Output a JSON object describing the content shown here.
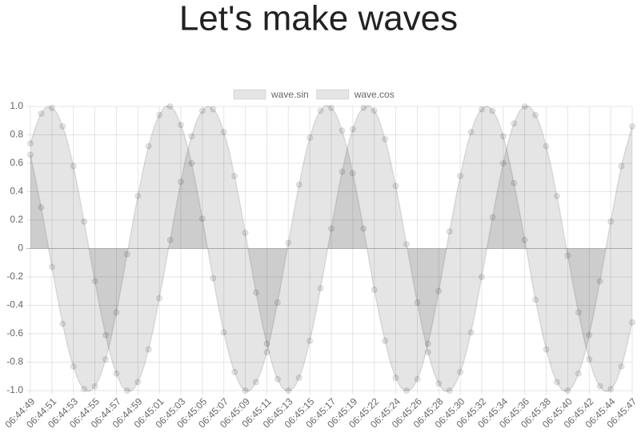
{
  "title": "Let's make waves",
  "chart_data": {
    "type": "line",
    "fill": "origin",
    "grid": true,
    "legend": "top",
    "categories": [
      "06:44:49",
      null,
      "06:44:51",
      null,
      "06:44:53",
      null,
      "06:44:55",
      null,
      "06:44:57",
      null,
      "06:44:59",
      null,
      "06:45:01",
      null,
      "06:45:03",
      null,
      "06:45:05",
      null,
      "06:45:07",
      null,
      "06:45:09",
      null,
      "06:45:11",
      null,
      "06:45:13",
      null,
      "06:45:15",
      null,
      "06:45:17",
      null,
      "06:45:19",
      null,
      "06:45:22",
      null,
      "06:45:24",
      null,
      "06:45:26",
      null,
      "06:45:28",
      null,
      "06:45:30",
      null,
      "06:45:32",
      null,
      "06:45:34",
      null,
      "06:45:36",
      null,
      "06:45:38",
      null,
      "06:45:40",
      null,
      "06:45:42",
      null,
      "06:45:44",
      null,
      "06:45:47"
    ],
    "series": [
      {
        "name": "wave.sin",
        "color": "rgba(0,0,0,0.1)",
        "values": [
          0.74,
          0.95,
          0.99,
          0.86,
          0.58,
          0.19,
          -0.23,
          -0.61,
          -0.88,
          -1.0,
          -0.94,
          -0.71,
          -0.35,
          0.06,
          0.47,
          0.79,
          0.97,
          0.98,
          0.82,
          0.51,
          0.11,
          -0.31,
          -0.67,
          -0.92,
          -1.0,
          -0.91,
          -0.65,
          -0.28,
          0.14,
          0.54,
          0.84,
          0.99,
          0.97,
          0.77,
          0.44,
          0.03,
          -0.38,
          -0.73,
          -0.95,
          -1.0,
          -0.87,
          -0.59,
          -0.2,
          0.22,
          0.6,
          0.88,
          1.0,
          0.94,
          0.72,
          0.37,
          -0.05,
          -0.45,
          -0.78,
          -0.97,
          -0.99,
          -0.83,
          -0.52
        ]
      },
      {
        "name": "wave.cos",
        "color": "rgba(0,0,0,0.1)",
        "values": [
          0.66,
          0.29,
          -0.13,
          -0.53,
          -0.83,
          -0.99,
          -0.97,
          -0.78,
          -0.45,
          -0.04,
          0.37,
          0.72,
          0.94,
          1.0,
          0.87,
          0.6,
          0.21,
          -0.21,
          -0.59,
          -0.87,
          -1.0,
          -0.94,
          -0.73,
          -0.38,
          0.04,
          0.45,
          0.78,
          0.97,
          0.99,
          0.83,
          0.53,
          0.14,
          -0.29,
          -0.65,
          -0.91,
          -1.0,
          -0.92,
          -0.67,
          -0.3,
          0.12,
          0.51,
          0.82,
          0.98,
          0.97,
          0.79,
          0.46,
          0.06,
          -0.36,
          -0.71,
          -0.94,
          -1.0,
          -0.88,
          -0.61,
          -0.23,
          0.19,
          0.58,
          0.86
        ]
      }
    ],
    "ylim": [
      -1,
      1
    ],
    "yticks": [
      {
        "value": 1,
        "label": "1.0"
      },
      0.8,
      0.6,
      0.4,
      0.2,
      0,
      -0.2,
      -0.4,
      -0.6,
      -0.8,
      {
        "value": -1,
        "label": "-1.0"
      }
    ]
  }
}
